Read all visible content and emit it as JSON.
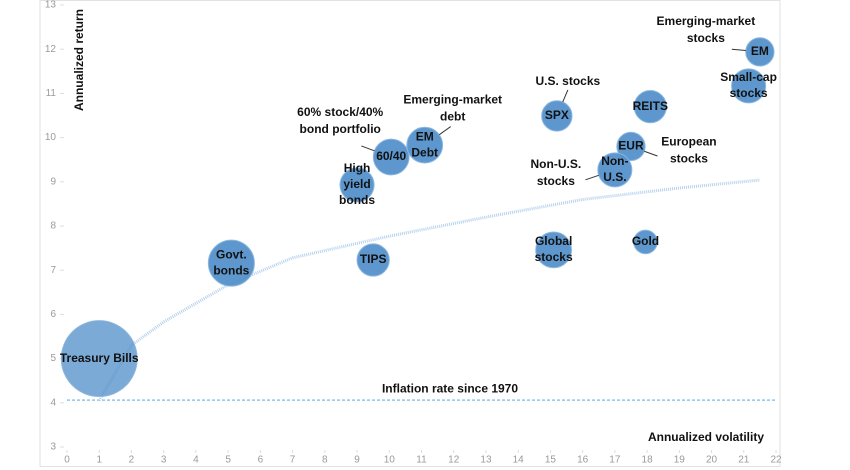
{
  "chart_data": {
    "type": "bubble",
    "y_label": "Annualized return",
    "x_label": "Annualized volatility",
    "xlim": [
      0,
      22
    ],
    "ylim": [
      3,
      13
    ],
    "xticks": [
      0,
      1,
      2,
      3,
      4,
      5,
      6,
      7,
      8,
      9,
      10,
      11,
      12,
      13,
      14,
      15,
      16,
      17,
      18,
      19,
      20,
      21,
      22
    ],
    "yticks": [
      3,
      4,
      5,
      6,
      7,
      8,
      9,
      10,
      11,
      12,
      13
    ],
    "color": "#4f8ec9",
    "points": [
      {
        "inner": [
          "Treasury Bills"
        ],
        "x": 1.0,
        "y": 5.0,
        "size": 14.4
      },
      {
        "inner": [
          "Govt.",
          "bonds"
        ],
        "x": 5.1,
        "y": 7.16,
        "size": 5.3
      },
      {
        "inner": [
          "TIPS"
        ],
        "x": 9.5,
        "y": 7.23,
        "size": 2.6
      },
      {
        "inner": [
          "High",
          "yield",
          "bonds"
        ],
        "x": 9.0,
        "y": 8.93,
        "size": 2.9
      },
      {
        "inner": [
          "60/40"
        ],
        "note": [
          "60% stock/40%",
          "bond portfolio"
        ],
        "x": 10.06,
        "y": 9.56,
        "size": 3.2
      },
      {
        "inner": [
          "EM",
          "Debt"
        ],
        "note": [
          "Emerging-market",
          "debt"
        ],
        "x": 11.1,
        "y": 9.83,
        "size": 3.2
      },
      {
        "inner": [
          "SPX"
        ],
        "note": [
          "U.S. stocks"
        ],
        "x": 15.2,
        "y": 10.49,
        "size": 2.3
      },
      {
        "inner": [
          "Global",
          "stocks"
        ],
        "x": 15.1,
        "y": 7.46,
        "size": 3.2
      },
      {
        "inner": [
          "REITS"
        ],
        "x": 18.1,
        "y": 10.7,
        "size": 2.6
      },
      {
        "inner": [
          "EUR"
        ],
        "note": [
          "European",
          "stocks"
        ],
        "x": 17.5,
        "y": 9.8,
        "size": 2.0
      },
      {
        "inner": [
          "Non-",
          "U.S."
        ],
        "note": [
          "Non-U.S.",
          "stocks"
        ],
        "x": 17.0,
        "y": 9.27,
        "size": 2.9
      },
      {
        "inner": [
          "Gold"
        ],
        "x": 17.95,
        "y": 7.64,
        "size": 1.4
      },
      {
        "inner": [
          "EM"
        ],
        "note": [
          "Emerging-market",
          "stocks"
        ],
        "x": 21.5,
        "y": 11.94,
        "size": 2.0
      },
      {
        "inner": [
          "Small-cap",
          "stocks"
        ],
        "x": 21.15,
        "y": 11.17,
        "size": 2.9
      }
    ],
    "frontier": {
      "x": [
        1,
        2,
        3,
        5,
        7,
        10,
        13,
        16,
        19,
        21.5
      ],
      "y": [
        4.05,
        5.3,
        5.83,
        6.67,
        7.28,
        7.77,
        8.2,
        8.6,
        8.86,
        9.04
      ]
    },
    "inflation": {
      "label": "Inflation rate since 1970",
      "value": 4.06
    }
  }
}
